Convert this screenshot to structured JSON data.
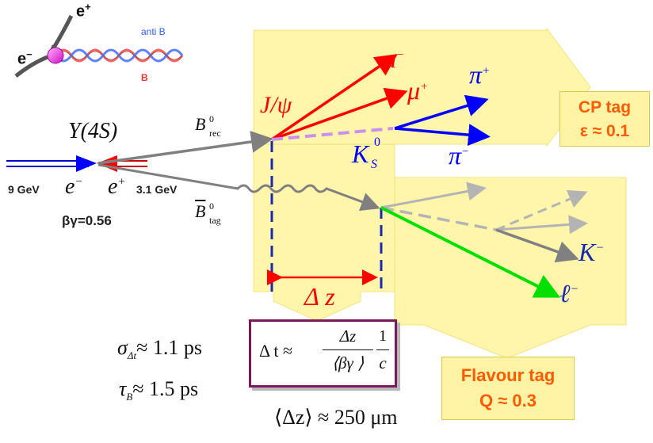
{
  "decay": {
    "positron_top": "e",
    "positron_top_sup": "+",
    "electron_left": "e",
    "electron_left_sup": "−",
    "anti_b": "anti B",
    "b": "B",
    "upsilon": "Y(4S)",
    "electron_energy": "9 GeV",
    "electron": "e",
    "electron_sup": "−",
    "positron": "e",
    "positron_sup": "+",
    "positron_energy": "3.1 GeV",
    "boost": "βγ=0.56",
    "b_rec": "B",
    "b_rec_sup": "0",
    "b_rec_sub": "rec",
    "b_tag": "B",
    "b_tag_sup": "0",
    "b_tag_sub": "tag",
    "jpsi": "J/ψ",
    "mu_minus": "μ",
    "mu_minus_sup": "−",
    "mu_plus": "μ",
    "mu_plus_sup": "+",
    "pi_plus": "π",
    "pi_plus_sup": "+",
    "ks": "K",
    "ks_sup": "0",
    "ks_sub": "S",
    "pi_minus": "π",
    "pi_minus_sup": "−",
    "k_minus": "K",
    "k_minus_sup": "−",
    "lepton": "ℓ",
    "lepton_sup": "−",
    "delta_z": "Δ z"
  },
  "cp_tag": {
    "title": "CP tag",
    "value": "ε ≈ 0.1"
  },
  "flavour_tag": {
    "title": "Flavour tag",
    "value": "Q ≈ 0.3"
  },
  "formulas": {
    "sigma_dt": "σ",
    "sigma_dt_sub": "Δt",
    "sigma_dt_val": "≈ 1.1 ps",
    "tau_b": "τ",
    "tau_b_sub": "B",
    "tau_b_val": "≈ 1.5 ps",
    "dt_lhs": "Δ t  ≈",
    "dt_num": "Δz",
    "dt_den": "⟨βγ ⟩",
    "dt_num2": "1",
    "dt_den2": "c",
    "mean_dz": "⟨Δz⟩ ≈ 250 μm"
  },
  "colors": {
    "yellow_fill": "#fff6a8",
    "red": "#ff0000",
    "blue": "#0000ff",
    "grey": "#808080",
    "light_grey": "#b4b4b4",
    "green": "#00e000",
    "violet": "#c890f0",
    "navy": "#1a2ab0",
    "orange": "#ff5a00",
    "maroon": "#7a1a5a"
  }
}
